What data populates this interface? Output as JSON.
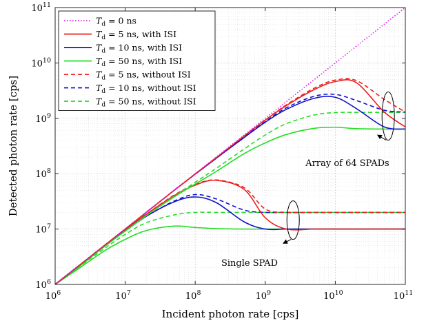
{
  "chart_data": {
    "type": "line",
    "title": "",
    "xlabel": "Incident photon rate [cps]",
    "ylabel": "Detected photon rate [cps]",
    "xscale": "log",
    "yscale": "log",
    "xlim": [
      1000000,
      100000000000
    ],
    "ylim": [
      1000000,
      100000000000
    ],
    "grid": "major and minor",
    "legend_position": "top-left",
    "x_ticks": [
      {
        "base": "10",
        "exp": "6"
      },
      {
        "base": "10",
        "exp": "7"
      },
      {
        "base": "10",
        "exp": "8"
      },
      {
        "base": "10",
        "exp": "9"
      },
      {
        "base": "10",
        "exp": "10"
      },
      {
        "base": "10",
        "exp": "11"
      }
    ],
    "y_ticks": [
      {
        "base": "10",
        "exp": "6"
      },
      {
        "base": "10",
        "exp": "7"
      },
      {
        "base": "10",
        "exp": "8"
      },
      {
        "base": "10",
        "exp": "9"
      },
      {
        "base": "10",
        "exp": "10"
      },
      {
        "base": "10",
        "exp": "11"
      }
    ],
    "x": [
      1000000.0,
      2000000.0,
      5000000.0,
      10000000.0,
      20000000.0,
      50000000.0,
      100000000.0,
      200000000.0,
      500000000.0,
      1000000000.0,
      2000000000.0,
      5000000000.0,
      10000000000.0,
      20000000000.0,
      50000000000.0,
      100000000000.0
    ],
    "series": [
      {
        "name": "T_d = 0 ns",
        "label_parts": [
          "T",
          "d",
          " = 0 ns"
        ],
        "color": "#e61ee6",
        "dash": "dotted",
        "values": [
          1000000.0,
          2000000.0,
          5000000.0,
          10000000.0,
          20000000.0,
          50000000.0,
          100000000.0,
          200000000.0,
          500000000.0,
          1000000000.0,
          2000000000.0,
          5000000000.0,
          10000000000.0,
          20000000000.0,
          50000000000.0,
          100000000000.0
        ]
      },
      {
        "name": "T_d = 5 ns, with ISI",
        "label_parts": [
          "T",
          "d",
          " = 5 ns, with ISI"
        ],
        "color": "#ee1c1c",
        "dash": "solid",
        "values": [
          1000000.0,
          2000000.0,
          4900000.0,
          9600000.0,
          18500000.0,
          40000000.0,
          62000000.0,
          76000000.0,
          52000000.0,
          16000000.0,
          10000000.0,
          10000000.0,
          10000000.0,
          10000000.0,
          10000000.0,
          10000000.0
        ]
      },
      {
        "name": "T_d = 10 ns, with ISI",
        "label_parts": [
          "T",
          "d",
          " = 10 ns, with ISI"
        ],
        "color": "#1111cc",
        "dash": "solid",
        "values": [
          1000000.0,
          2000000.0,
          4800000.0,
          9200000.0,
          17000000.0,
          31000000.0,
          38000000.0,
          30000000.0,
          13500000.0,
          10000000.0,
          10000000.0,
          10000000.0,
          10000000.0,
          10000000.0,
          10000000.0,
          10000000.0
        ]
      },
      {
        "name": "T_d = 50 ns, with ISI",
        "label_parts": [
          "T",
          "d",
          " = 50 ns, with ISI"
        ],
        "color": "#22dd22",
        "dash": "solid",
        "values": [
          1000000.0,
          1800000.0,
          4000000.0,
          6500000.0,
          9400000.0,
          11300000.0,
          10700000.0,
          10200000.0,
          10000000.0,
          10000000.0,
          10000000.0,
          10000000.0,
          10000000.0,
          10000000.0,
          10000000.0,
          10000000.0
        ]
      },
      {
        "name": "T_d = 5 ns, without ISI",
        "label_parts": [
          "T",
          "d",
          " = 5 ns, without ISI"
        ],
        "color": "#ee1c1c",
        "dash": "dashed",
        "values": [
          1000000.0,
          2000000.0,
          4900000.0,
          9600000.0,
          18500000.0,
          41000000.0,
          64000000.0,
          77000000.0,
          56000000.0,
          23000000.0,
          20000000.0,
          20000000.0,
          20000000.0,
          20000000.0,
          20000000.0,
          20000000.0
        ]
      },
      {
        "name": "T_d = 10 ns, without ISI",
        "label_parts": [
          "T",
          "d",
          " = 10 ns, without ISI"
        ],
        "color": "#1111cc",
        "dash": "dashed",
        "values": [
          1000000.0,
          2000000.0,
          4800000.0,
          9200000.0,
          17000000.0,
          32000000.0,
          42000000.0,
          35000000.0,
          22000000.0,
          20000000.0,
          20000000.0,
          20000000.0,
          20000000.0,
          20000000.0,
          20000000.0,
          20000000.0
        ]
      },
      {
        "name": "T_d = 50 ns, without ISI",
        "label_parts": [
          "T",
          "d",
          " = 50 ns, without ISI"
        ],
        "color": "#22dd22",
        "dash": "dashed",
        "values": [
          1000000.0,
          1900000.0,
          4400000.0,
          8000000.0,
          13000000.0,
          18000000.0,
          20000000.0,
          20000000.0,
          20000000.0,
          20000000.0,
          20000000.0,
          20000000.0,
          20000000.0,
          20000000.0,
          20000000.0,
          20000000.0
        ]
      },
      {
        "name": "T_d = 5 ns, with ISI (array)",
        "color": "#ee1c1c",
        "dash": "solid",
        "in_legend": false,
        "values": [
          1000000.0,
          2000000.0,
          5000000.0,
          10000000.0,
          20000000.0,
          50000000.0,
          99000000.0,
          195000000.0,
          480000000.0,
          930000000.0,
          1700000000.0,
          3300000000.0,
          4600000000.0,
          4400000000.0,
          1300000000.0,
          700000000.0
        ]
      },
      {
        "name": "T_d = 10 ns, with ISI (array)",
        "color": "#1111cc",
        "dash": "solid",
        "in_legend": false,
        "values": [
          1000000.0,
          2000000.0,
          5000000.0,
          10000000.0,
          20000000.0,
          50000000.0,
          98000000.0,
          190000000.0,
          450000000.0,
          850000000.0,
          1450000000.0,
          2300000000.0,
          2400000000.0,
          1500000000.0,
          700000000.0,
          640000000.0
        ]
      },
      {
        "name": "T_d = 50 ns, with ISI (array)",
        "color": "#22dd22",
        "dash": "solid",
        "in_legend": false,
        "values": [
          1000000.0,
          1900000.0,
          4800000.0,
          9200000.0,
          17500000.0,
          38000000.0,
          65000000.0,
          110000000.0,
          230000000.0,
          360000000.0,
          510000000.0,
          660000000.0,
          690000000.0,
          650000000.0,
          640000000.0,
          640000000.0
        ]
      },
      {
        "name": "T_d = 5 ns, without ISI (array)",
        "color": "#ee1c1c",
        "dash": "dashed",
        "in_legend": false,
        "values": [
          1000000.0,
          2000000.0,
          5000000.0,
          10000000.0,
          20000000.0,
          50000000.0,
          99000000.0,
          195000000.0,
          480000000.0,
          930000000.0,
          1750000000.0,
          3500000000.0,
          4900000000.0,
          4800000000.0,
          2200000000.0,
          1300000000.0
        ]
      },
      {
        "name": "T_d = 10 ns, without ISI (array)",
        "color": "#1111cc",
        "dash": "dashed",
        "in_legend": false,
        "values": [
          1000000.0,
          2000000.0,
          5000000.0,
          10000000.0,
          20000000.0,
          50000000.0,
          98000000.0,
          190000000.0,
          460000000.0,
          870000000.0,
          1550000000.0,
          2500000000.0,
          2700000000.0,
          2100000000.0,
          1400000000.0,
          1300000000.0
        ]
      },
      {
        "name": "T_d = 50 ns, without ISI (array)",
        "color": "#22dd22",
        "dash": "dashed",
        "in_legend": false,
        "values": [
          1000000.0,
          1900000.0,
          4800000.0,
          9200000.0,
          17500000.0,
          39000000.0,
          70000000.0,
          125000000.0,
          280000000.0,
          500000000.0,
          800000000.0,
          1150000000.0,
          1270000000.0,
          1280000000.0,
          1280000000.0,
          1280000000.0
        ]
      }
    ],
    "annotations": [
      {
        "text": "Array of 64 SPADs",
        "ellipse_at": [
          57000000000.0,
          1100000000.0
        ],
        "arrow_to": [
          40000000000.0,
          500000000.0
        ]
      },
      {
        "text": "Single SPAD",
        "ellipse_at": [
          2500000000.0,
          14500000.0
        ],
        "arrow_to": [
          1800000000.0,
          5500000.0
        ]
      }
    ]
  }
}
